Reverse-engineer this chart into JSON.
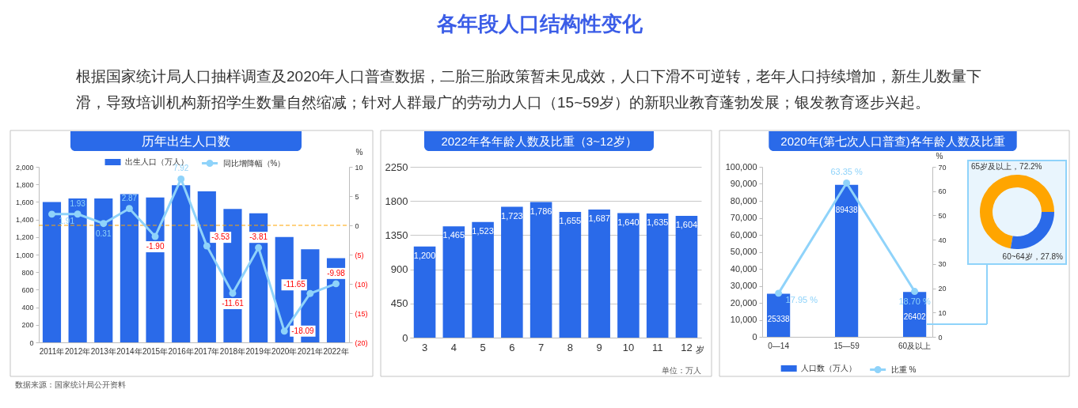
{
  "chart_data": [
    {
      "type": "other",
      "title": "各年段人口结构性变化",
      "subtitle": "根据国家统计局人口抽样调查及2020年人口普查数据，二胎三胎政策暂未见成效，人口下滑不可逆转，老年人口持续增加，新生儿数量下滑，导致培训机构新招学生数量自然缩减；针对人群最广的劳动力人口（15~59岁）的新职业教育蓬勃发展；银发教育逐步兴起。"
    },
    {
      "type": "bar",
      "title": "历年出生人口数",
      "categories": [
        "2011年",
        "2012年",
        "2013年",
        "2014年",
        "2015年",
        "2016年",
        "2017年",
        "2018年",
        "2019年",
        "2020年",
        "2021年",
        "2022年"
      ],
      "series": [
        {
          "name": "出生人口（万人）",
          "color": "#2a6ae9",
          "values": [
            1600,
            1640,
            1640,
            1690,
            1650,
            1790,
            1720,
            1520,
            1470,
            1200,
            1060,
            960
          ]
        },
        {
          "name": "同比增降幅（%）",
          "type": "line",
          "axis": "y2",
          "marker": "circle",
          "color": "#8fd3fa",
          "values": [
            1.91,
            1.93,
            0.31,
            2.87,
            -1.9,
            7.92,
            -3.53,
            -11.61,
            -3.81,
            -18.09,
            -11.65,
            -9.98
          ],
          "value_labels": [
            "1.91",
            "1.93",
            "0.31",
            "2.87",
            "-1.90",
            "7.92",
            "-3.53",
            "-11.61",
            "-3.81",
            "-18.09",
            "-11.65",
            "-9.98"
          ]
        }
      ],
      "ylim": [
        0,
        2000
      ],
      "yticks": [
        0,
        200,
        400,
        600,
        800,
        {
          "value": 1000,
          "label": "1,000"
        },
        {
          "value": 1200,
          "label": "1,200"
        },
        {
          "value": 1400,
          "label": "1,400"
        },
        {
          "value": 1600,
          "label": "1,600"
        },
        {
          "value": 1800,
          "label": "1,800"
        },
        {
          "value": 2000,
          "label": "2,000"
        }
      ],
      "y2lim": [
        -20,
        10
      ],
      "y2ticks": [
        {
          "value": -20,
          "label": "(20)"
        },
        {
          "value": -15,
          "label": "(15)"
        },
        {
          "value": -10,
          "label": "(10)"
        },
        {
          "value": -5,
          "label": "(5)"
        },
        0,
        5,
        10
      ],
      "y2label": "%",
      "legend": "top",
      "ref_lines": [
        {
          "axis": "y2",
          "value": 0,
          "color": "#ffa500",
          "line_style": "dashed"
        }
      ],
      "annotations": [
        "数据来源：国家统计局公开资料"
      ]
    },
    {
      "type": "bar",
      "title": "2022年各年龄人数及比重（3~12岁）",
      "categories": [
        "3",
        "4",
        "5",
        "6",
        "7",
        "8",
        "9",
        "10",
        "11",
        "12"
      ],
      "xlabel": "岁",
      "values": [
        1200,
        1465,
        1523,
        1723,
        1786,
        1655,
        1687,
        1640,
        1635,
        1604
      ],
      "color": "#2a6ae9",
      "value_labels": [
        "1,200",
        "1,465",
        "1,523",
        "1,723",
        "1,786",
        "1,655",
        "1,687",
        "1,640",
        "1,635",
        "1,604"
      ],
      "ylim": [
        0,
        2250
      ],
      "yticks": [
        0,
        450,
        900,
        1350,
        1800,
        2250
      ],
      "grid": "y",
      "annotations": [
        "单位：万人"
      ]
    },
    {
      "type": "bar",
      "title": "2020年(第七次人口普查)各年龄人数及比重",
      "categories": [
        "0—14",
        "15—59",
        "60及以上"
      ],
      "series": [
        {
          "name": "人口数（万人）",
          "color": "#2a6ae9",
          "values": [
            25338,
            89438,
            26402
          ],
          "value_labels": [
            "25338",
            "89438",
            "26402"
          ]
        },
        {
          "name": "比重 %",
          "type": "line",
          "axis": "y2",
          "marker": "circle",
          "color": "#8fd3fa",
          "values": [
            17.95,
            63.35,
            18.7
          ],
          "value_labels": [
            "17.95 %",
            "63.35 %",
            "18.70 %"
          ]
        }
      ],
      "ylim": [
        0,
        100000
      ],
      "yticks": [
        0,
        {
          "value": 10000,
          "label": "10,000"
        },
        {
          "value": 20000,
          "label": "20,000"
        },
        {
          "value": 30000,
          "label": "30,000"
        },
        {
          "value": 40000,
          "label": "40,000"
        },
        {
          "value": 50000,
          "label": "50,000"
        },
        {
          "value": 60000,
          "label": "60,000"
        },
        {
          "value": 70000,
          "label": "70,000"
        },
        {
          "value": 80000,
          "label": "80,000"
        },
        {
          "value": 90000,
          "label": "90,000"
        },
        {
          "value": 100000,
          "label": "100,000"
        }
      ],
      "y2lim": [
        0,
        70
      ],
      "y2ticks": [
        0,
        10,
        20,
        30,
        40,
        50,
        60,
        70
      ],
      "y2label": "%",
      "legend": "bottom"
    },
    {
      "type": "donut",
      "categories": [
        "65岁及以上",
        "60~64岁"
      ],
      "values": [
        72.2,
        27.8
      ],
      "colors": [
        "#ffa500",
        "#2a6ae9"
      ],
      "value_labels": [
        "，72.2%",
        "，27.8%"
      ]
    }
  ]
}
